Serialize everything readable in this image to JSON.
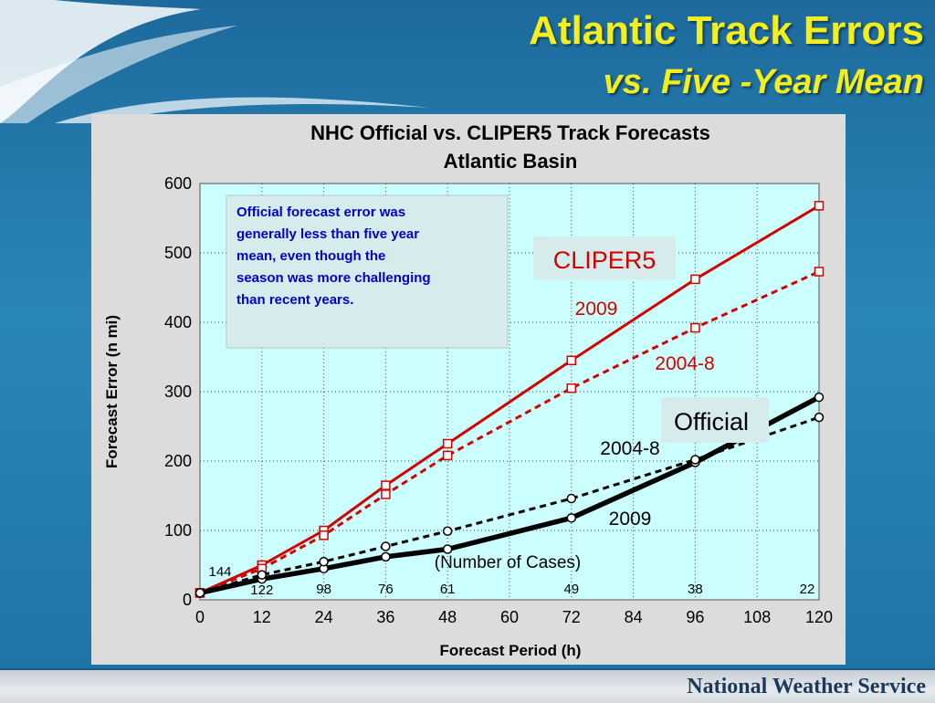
{
  "slide": {
    "title": "Atlantic Track Errors",
    "subtitle": "vs. Five -Year Mean",
    "footer": "National Weather Service"
  },
  "colors": {
    "cliper": "#d40000",
    "official": "#000000",
    "plot_bg": "#ccffff",
    "note_bg": "#d6ecec",
    "note_text": "#0000cc",
    "title_yellow": "#f4ef1c"
  },
  "chart_data": {
    "type": "line",
    "title": "NHC Official vs. CLIPER5 Track Forecasts",
    "subtitle": "Atlantic Basin",
    "xlabel": "Forecast Period (h)",
    "ylabel": "Forecast Error (n mi)",
    "xlim": [
      0,
      120
    ],
    "ylim": [
      0,
      600
    ],
    "xticks": [
      0,
      12,
      24,
      36,
      48,
      60,
      72,
      84,
      96,
      108,
      120
    ],
    "yticks": [
      0,
      100,
      200,
      300,
      400,
      500,
      600
    ],
    "grid": true,
    "x": [
      0,
      12,
      24,
      36,
      48,
      72,
      96,
      120
    ],
    "series": [
      {
        "group": "CLIPER5",
        "label": "2009",
        "style": "solid",
        "marker": "square",
        "values": [
          10,
          50,
          100,
          165,
          225,
          345,
          462,
          568
        ]
      },
      {
        "group": "CLIPER5",
        "label": "2004-8",
        "style": "dashed",
        "marker": "square",
        "values": [
          10,
          45,
          93,
          152,
          208,
          305,
          392,
          473
        ]
      },
      {
        "group": "Official",
        "label": "2009",
        "style": "solid-thick",
        "marker": "circle",
        "values": [
          10,
          30,
          45,
          62,
          73,
          118,
          198,
          292
        ]
      },
      {
        "group": "Official",
        "label": "2004-8",
        "style": "dashed",
        "marker": "circle",
        "values": [
          10,
          36,
          55,
          77,
          99,
          146,
          202,
          263
        ]
      }
    ],
    "case_counts": {
      "title": "(Number of Cases)",
      "items": [
        {
          "x": 0,
          "label": "144"
        },
        {
          "x": 12,
          "label": "122"
        },
        {
          "x": 24,
          "label": "98"
        },
        {
          "x": 36,
          "label": "76"
        },
        {
          "x": 48,
          "label": "61"
        },
        {
          "x": 72,
          "label": "49"
        },
        {
          "x": 96,
          "label": "38"
        },
        {
          "x": 120,
          "label": "22"
        }
      ]
    },
    "annotations": {
      "note": [
        "Official forecast error was",
        "generally less than five year",
        "mean, even though the",
        "season was more challenging",
        "than recent years."
      ],
      "cliper_label": "CLIPER5",
      "cliper_2009": "2009",
      "cliper_2004_8": "2004-8",
      "official_label": "Official",
      "official_2004_8": "2004-8",
      "official_2009": "2009"
    }
  }
}
